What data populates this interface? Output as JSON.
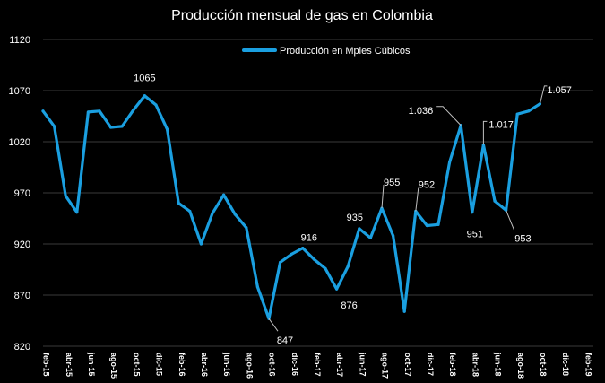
{
  "chart_data": {
    "type": "line",
    "title": "Producción mensual de gas en Colombia",
    "legend": {
      "label": "Producción en Mpies Cúbicos",
      "position": "top"
    },
    "colors": {
      "series": "#1a9fe0",
      "background": "#000000",
      "text": "#ffffff",
      "grid": "#3a3a3a"
    },
    "ylim": [
      820,
      1120
    ],
    "yticks": [
      "820",
      "870",
      "920",
      "970",
      "1020",
      "1070",
      "1120"
    ],
    "grid": true,
    "xtick_labels": [
      "feb-15",
      "abr-15",
      "jun-15",
      "ago-15",
      "oct-15",
      "dic-15",
      "feb-16",
      "abr-16",
      "jun-16",
      "ago-16",
      "oct-16",
      "dic-16",
      "feb-17",
      "abr-17",
      "jun-17",
      "ago-17",
      "oct-17",
      "dic-17",
      "feb-18",
      "abr-18",
      "jun-18",
      "ago-18",
      "oct-18",
      "dic-18",
      "feb-19"
    ],
    "series": [
      {
        "name": "Producción en Mpies Cúbicos",
        "x": [
          "feb-15",
          "mar-15",
          "abr-15",
          "may-15",
          "jun-15",
          "jul-15",
          "ago-15",
          "sep-15",
          "oct-15",
          "nov-15",
          "dic-15",
          "ene-16",
          "feb-16",
          "mar-16",
          "abr-16",
          "may-16",
          "jun-16",
          "jul-16",
          "ago-16",
          "sep-16",
          "oct-16",
          "nov-16",
          "dic-16",
          "ene-17",
          "feb-17",
          "mar-17",
          "abr-17",
          "may-17",
          "jun-17",
          "jul-17",
          "ago-17",
          "sep-17",
          "oct-17",
          "nov-17",
          "dic-17",
          "ene-18",
          "feb-18",
          "mar-18",
          "abr-18",
          "may-18",
          "jun-18",
          "jul-18",
          "ago-18",
          "sep-18",
          "oct-18"
        ],
        "values": [
          1050,
          1035,
          967,
          951,
          1049,
          1050,
          1034,
          1035,
          1051,
          1065,
          1056,
          1032,
          960,
          952,
          920,
          950,
          968,
          949,
          936,
          878,
          847,
          902,
          910,
          916,
          905,
          896,
          876,
          898,
          935,
          926,
          955,
          928,
          854,
          952,
          938,
          939,
          1000,
          1036,
          951,
          1017,
          962,
          953,
          1047,
          1050,
          1057
        ]
      }
    ],
    "annotations": [
      {
        "index": 9,
        "label": "1065"
      },
      {
        "index": 20,
        "label": "847"
      },
      {
        "index": 23,
        "label": "916"
      },
      {
        "index": 26,
        "label": "876"
      },
      {
        "index": 28,
        "label": "935"
      },
      {
        "index": 30,
        "label": "955"
      },
      {
        "index": 33,
        "label": "952"
      },
      {
        "index": 37,
        "label": "1.036"
      },
      {
        "index": 38,
        "label": "951"
      },
      {
        "index": 39,
        "label": "1.017"
      },
      {
        "index": 41,
        "label": "953"
      },
      {
        "index": 44,
        "label": "1.057"
      }
    ]
  }
}
